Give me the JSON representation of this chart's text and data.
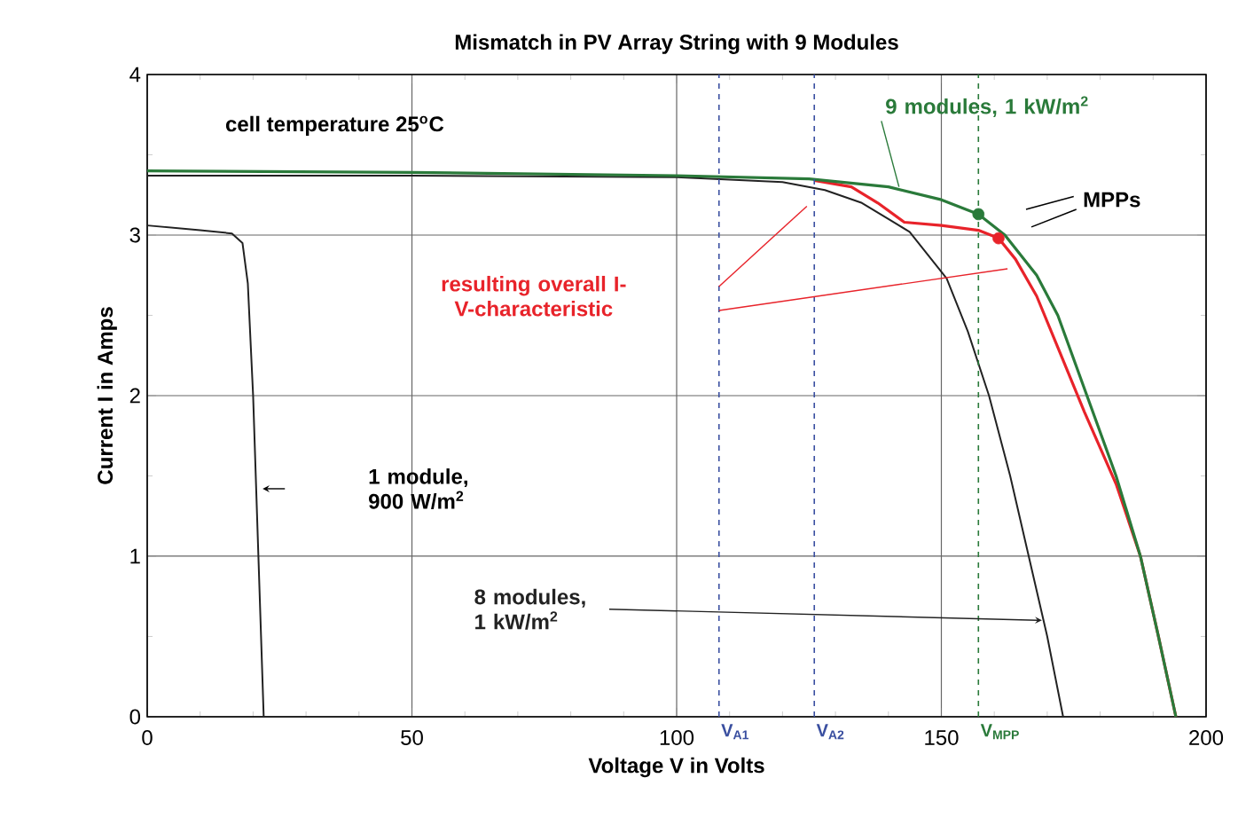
{
  "chart_data": {
    "type": "line",
    "title": "Mismatch in PV Array String with 9 Modules",
    "xlabel": "Voltage V in Volts",
    "ylabel": "Current I in Amps",
    "xlim": [
      0,
      200
    ],
    "ylim": [
      0,
      4
    ],
    "xticks": [
      0,
      50,
      100,
      150,
      200
    ],
    "yticks": [
      0,
      1,
      2,
      3,
      4
    ],
    "grid": true,
    "series": [
      {
        "color": "#222222",
        "x": [
          0,
          10,
          16,
          18,
          19,
          20,
          21,
          22
        ],
        "values": [
          3.06,
          3.03,
          3.01,
          2.95,
          2.7,
          2.0,
          1.0,
          0
        ]
      },
      {
        "color": "#222222",
        "x": [
          0,
          50,
          100,
          120,
          128,
          135,
          140,
          144,
          151,
          155,
          159,
          163,
          166.5,
          170,
          173
        ],
        "values": [
          3.37,
          3.37,
          3.36,
          3.33,
          3.28,
          3.2,
          3.1,
          3.02,
          2.73,
          2.4,
          2.0,
          1.5,
          1.0,
          0.5,
          0
        ]
      },
      {
        "name": "resulting overall I-V-characteristic",
        "color": "#e8232a",
        "x": [
          126,
          133,
          138,
          143,
          150,
          157,
          160.8,
          164,
          168,
          172,
          177,
          183,
          187.6,
          191,
          194.3
        ],
        "values": [
          3.34,
          3.3,
          3.2,
          3.08,
          3.06,
          3.03,
          2.98,
          2.85,
          2.62,
          2.3,
          1.9,
          1.45,
          1.0,
          0.5,
          0
        ]
      },
      {
        "color": "#2a7a3a",
        "x": [
          0,
          50,
          100,
          125,
          140,
          150,
          157,
          162,
          168,
          172,
          177.5,
          183,
          187.6,
          191,
          194.3
        ],
        "values": [
          3.4,
          3.39,
          3.37,
          3.35,
          3.3,
          3.22,
          3.13,
          3.0,
          2.75,
          2.5,
          2.0,
          1.5,
          1.0,
          0.5,
          0
        ]
      },
      {
        "type": "scatter",
        "marker": "circle",
        "color": "#2a7a3a",
        "x": [
          157
        ],
        "values": [
          3.13
        ]
      },
      {
        "type": "scatter",
        "marker": "circle",
        "color": "#e8232a",
        "x": [
          160.8
        ],
        "values": [
          2.98
        ]
      }
    ],
    "ref_lines": [
      {
        "axis": "x",
        "value": 108,
        "label": "V$_{A1}$",
        "color": "#3a4fa0",
        "line_style": "dashed"
      },
      {
        "axis": "x",
        "value": 126,
        "label": "V$_{A2}$",
        "color": "#3a4fa0",
        "line_style": "dashed"
      },
      {
        "axis": "x",
        "value": 157,
        "label": "V$_{MPP}$",
        "color": "#2a7a3a",
        "line_style": "dashed"
      }
    ],
    "annotations": [
      "cell temperature 25$^{o}$C",
      "MPPs",
      "1 module, 900 W/m$^{2}$",
      {
        "text": "8 modules, 1 kW/m$^{2}$",
        "x": 169,
        "y": 0.6
      },
      {
        "text": "9 modules, 1 kW/m$^{2}$",
        "x": 142,
        "y": 3.3
      }
    ]
  }
}
